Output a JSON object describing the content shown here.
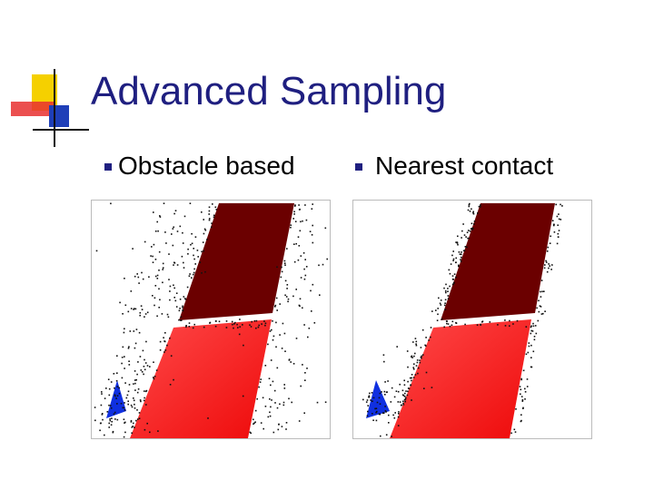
{
  "slide": {
    "title": "Advanced Sampling",
    "bullets": [
      {
        "label": "Obstacle based"
      },
      {
        "label": "Nearest contact"
      }
    ]
  },
  "figures": [
    {
      "name": "obstacle-based-sampling",
      "sample_distribution": "scattered-near-obstacles"
    },
    {
      "name": "nearest-contact-sampling",
      "sample_distribution": "on-obstacle-boundaries"
    }
  ],
  "colors": {
    "title": "#1f1f80",
    "accent_yellow": "#f5d000",
    "accent_red": "#e83030",
    "accent_blue": "#1f3fb8",
    "upper_obstacle": "#6b0000",
    "lower_obstacle": "#ff2020",
    "robot": "#1030e0"
  },
  "icons": {
    "bullet": "square-bullet-icon",
    "robot": "triangle-robot-icon",
    "logo": "corner-logo-icon"
  }
}
